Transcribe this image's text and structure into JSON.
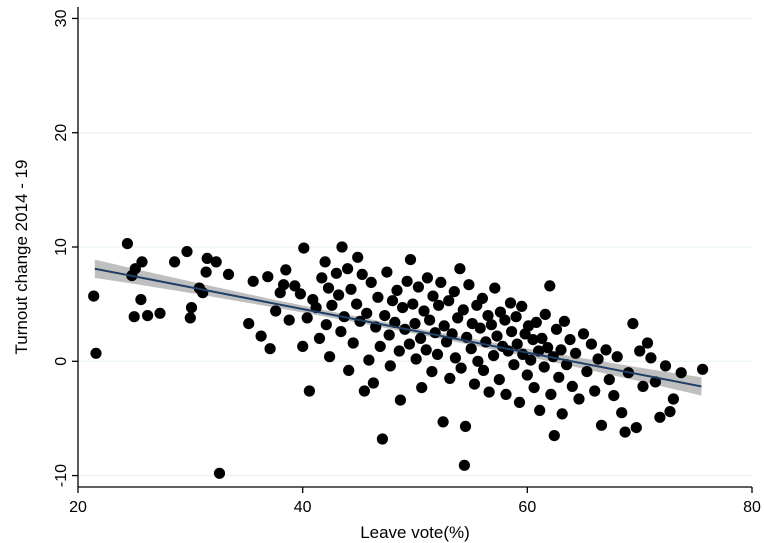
{
  "chart_data": {
    "type": "scatter",
    "title": "",
    "xlabel": "Leave vote(%)",
    "ylabel": "Turnout change 2014 - 19",
    "xlim": [
      20,
      80
    ],
    "ylim": [
      -11,
      31
    ],
    "xticks": [
      20,
      40,
      60,
      80
    ],
    "xtick_labels": [
      "20",
      "40",
      "60",
      "80"
    ],
    "yticks": [
      -10,
      0,
      10,
      20,
      30
    ],
    "ytick_labels": [
      "-10",
      "0",
      "10",
      "20",
      "30"
    ],
    "grid": "horizontal",
    "legend": "none",
    "colors": {
      "points": "#000000",
      "fit_line": "#1f3f66",
      "confidence_band": "#b4b4b4",
      "grid": "#eaf2f3"
    },
    "fit": {
      "x": [
        21.5,
        75.5
      ],
      "y": [
        8.1,
        -2.2
      ],
      "ci_halfwidth_ends": 0.8,
      "ci_halfwidth_mid": 0.25
    },
    "points": [
      [
        21.4,
        5.7
      ],
      [
        21.6,
        0.7
      ],
      [
        24.4,
        10.3
      ],
      [
        24.8,
        7.5
      ],
      [
        25.1,
        8.1
      ],
      [
        25.0,
        3.9
      ],
      [
        25.7,
        8.7
      ],
      [
        25.6,
        5.4
      ],
      [
        26.2,
        4.0
      ],
      [
        27.3,
        4.2
      ],
      [
        28.6,
        8.7
      ],
      [
        29.7,
        9.6
      ],
      [
        30.0,
        3.8
      ],
      [
        30.1,
        4.7
      ],
      [
        30.8,
        6.4
      ],
      [
        31.1,
        6.0
      ],
      [
        31.5,
        9.0
      ],
      [
        31.4,
        7.8
      ],
      [
        32.3,
        8.7
      ],
      [
        32.6,
        -9.8
      ],
      [
        33.4,
        7.6
      ],
      [
        35.2,
        3.3
      ],
      [
        35.6,
        7.0
      ],
      [
        36.3,
        2.2
      ],
      [
        36.9,
        7.4
      ],
      [
        37.1,
        1.1
      ],
      [
        37.6,
        4.4
      ],
      [
        38.0,
        6.0
      ],
      [
        38.3,
        6.7
      ],
      [
        38.5,
        8.0
      ],
      [
        38.8,
        3.6
      ],
      [
        39.3,
        6.6
      ],
      [
        39.8,
        5.9
      ],
      [
        40.0,
        1.3
      ],
      [
        40.1,
        9.9
      ],
      [
        40.4,
        3.8
      ],
      [
        40.6,
        -2.6
      ],
      [
        40.9,
        5.4
      ],
      [
        41.2,
        4.7
      ],
      [
        41.5,
        2.0
      ],
      [
        41.7,
        7.3
      ],
      [
        42.0,
        8.7
      ],
      [
        42.1,
        3.2
      ],
      [
        42.3,
        6.4
      ],
      [
        42.4,
        0.4
      ],
      [
        42.6,
        4.9
      ],
      [
        43.0,
        7.7
      ],
      [
        43.2,
        5.8
      ],
      [
        43.4,
        2.6
      ],
      [
        43.5,
        10.0
      ],
      [
        43.7,
        3.9
      ],
      [
        44.0,
        8.1
      ],
      [
        44.1,
        -0.8
      ],
      [
        44.3,
        6.3
      ],
      [
        44.5,
        1.6
      ],
      [
        44.8,
        5.0
      ],
      [
        44.9,
        9.1
      ],
      [
        45.1,
        3.5
      ],
      [
        45.3,
        7.6
      ],
      [
        45.5,
        -2.6
      ],
      [
        45.7,
        4.2
      ],
      [
        45.9,
        0.1
      ],
      [
        46.1,
        6.9
      ],
      [
        46.3,
        -1.9
      ],
      [
        46.5,
        3.0
      ],
      [
        46.7,
        5.6
      ],
      [
        46.9,
        1.3
      ],
      [
        47.1,
        -6.8
      ],
      [
        47.3,
        4.0
      ],
      [
        47.5,
        7.8
      ],
      [
        47.7,
        2.3
      ],
      [
        47.8,
        -0.4
      ],
      [
        48.0,
        5.3
      ],
      [
        48.2,
        3.4
      ],
      [
        48.4,
        6.2
      ],
      [
        48.6,
        0.9
      ],
      [
        48.7,
        -3.4
      ],
      [
        48.9,
        4.7
      ],
      [
        49.1,
        2.8
      ],
      [
        49.3,
        7.0
      ],
      [
        49.5,
        1.5
      ],
      [
        49.6,
        8.9
      ],
      [
        49.8,
        5.0
      ],
      [
        50.0,
        3.3
      ],
      [
        50.1,
        0.2
      ],
      [
        50.3,
        6.5
      ],
      [
        50.5,
        2.0
      ],
      [
        50.6,
        -2.3
      ],
      [
        50.8,
        4.4
      ],
      [
        51.0,
        1.0
      ],
      [
        51.1,
        7.3
      ],
      [
        51.3,
        3.6
      ],
      [
        51.5,
        -0.9
      ],
      [
        51.6,
        5.7
      ],
      [
        51.8,
        2.5
      ],
      [
        52.0,
        0.6
      ],
      [
        52.1,
        4.9
      ],
      [
        52.3,
        6.9
      ],
      [
        52.5,
        -5.3
      ],
      [
        52.6,
        3.1
      ],
      [
        52.8,
        1.7
      ],
      [
        53.0,
        5.3
      ],
      [
        53.1,
        -1.5
      ],
      [
        53.3,
        2.4
      ],
      [
        53.5,
        6.1
      ],
      [
        53.6,
        0.3
      ],
      [
        53.8,
        3.8
      ],
      [
        54.0,
        8.1
      ],
      [
        54.1,
        -0.6
      ],
      [
        54.3,
        4.5
      ],
      [
        54.4,
        -9.1
      ],
      [
        54.5,
        -5.7
      ],
      [
        54.6,
        2.1
      ],
      [
        54.8,
        6.7
      ],
      [
        55.0,
        1.1
      ],
      [
        55.1,
        3.3
      ],
      [
        55.3,
        -2.0
      ],
      [
        55.5,
        4.9
      ],
      [
        55.6,
        0.0
      ],
      [
        55.8,
        2.9
      ],
      [
        56.0,
        5.5
      ],
      [
        56.1,
        -0.8
      ],
      [
        56.3,
        1.7
      ],
      [
        56.5,
        4.0
      ],
      [
        56.6,
        -2.7
      ],
      [
        56.8,
        3.2
      ],
      [
        57.0,
        0.5
      ],
      [
        57.1,
        6.4
      ],
      [
        57.3,
        2.2
      ],
      [
        57.5,
        -1.6
      ],
      [
        57.6,
        4.3
      ],
      [
        57.8,
        1.3
      ],
      [
        58.0,
        3.6
      ],
      [
        58.1,
        -2.9
      ],
      [
        58.3,
        0.9
      ],
      [
        58.5,
        5.1
      ],
      [
        58.6,
        2.6
      ],
      [
        58.8,
        -0.3
      ],
      [
        59.0,
        3.9
      ],
      [
        59.1,
        1.5
      ],
      [
        59.3,
        -3.6
      ],
      [
        59.5,
        4.8
      ],
      [
        59.6,
        0.6
      ],
      [
        59.8,
        2.4
      ],
      [
        60.0,
        -1.2
      ],
      [
        60.1,
        3.1
      ],
      [
        60.3,
        0.1
      ],
      [
        60.5,
        1.9
      ],
      [
        60.6,
        -2.3
      ],
      [
        60.8,
        3.4
      ],
      [
        61.0,
        0.9
      ],
      [
        61.1,
        -4.3
      ],
      [
        61.3,
        2.0
      ],
      [
        61.5,
        -0.5
      ],
      [
        61.6,
        4.1
      ],
      [
        61.8,
        1.2
      ],
      [
        62.0,
        6.6
      ],
      [
        62.1,
        -2.9
      ],
      [
        62.3,
        0.4
      ],
      [
        62.4,
        -6.5
      ],
      [
        62.6,
        2.8
      ],
      [
        62.8,
        -1.4
      ],
      [
        63.0,
        1.0
      ],
      [
        63.1,
        -4.6
      ],
      [
        63.3,
        3.5
      ],
      [
        63.5,
        -0.3
      ],
      [
        63.8,
        1.9
      ],
      [
        64.0,
        -2.2
      ],
      [
        64.3,
        0.7
      ],
      [
        64.6,
        -3.3
      ],
      [
        65.0,
        2.4
      ],
      [
        65.3,
        -0.9
      ],
      [
        65.7,
        1.5
      ],
      [
        66.0,
        -2.6
      ],
      [
        66.3,
        0.2
      ],
      [
        66.6,
        -5.6
      ],
      [
        67.0,
        1.0
      ],
      [
        67.3,
        -1.6
      ],
      [
        67.7,
        -3.0
      ],
      [
        68.0,
        0.4
      ],
      [
        68.4,
        -4.5
      ],
      [
        68.7,
        -6.2
      ],
      [
        69.0,
        -1.0
      ],
      [
        69.4,
        3.3
      ],
      [
        69.7,
        -5.8
      ],
      [
        70.0,
        0.9
      ],
      [
        70.3,
        -2.2
      ],
      [
        70.7,
        1.6
      ],
      [
        71.0,
        0.3
      ],
      [
        71.4,
        -1.8
      ],
      [
        71.8,
        -4.9
      ],
      [
        72.3,
        -0.4
      ],
      [
        72.7,
        -4.4
      ],
      [
        73.0,
        -3.3
      ],
      [
        73.7,
        -1.0
      ],
      [
        75.6,
        -0.7
      ]
    ]
  }
}
